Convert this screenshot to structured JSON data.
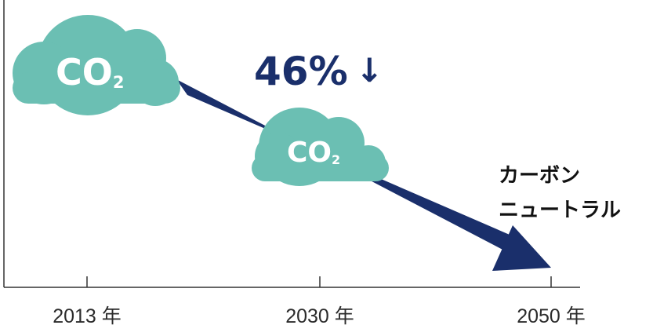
{
  "colors": {
    "cloud": "#6bbfb3",
    "arrow": "#1a2f6b",
    "axis": "#333333",
    "label_text": "#111111",
    "percent_text": "#1a2f6b"
  },
  "timeline": {
    "ticks": [
      {
        "label": "2013 年"
      },
      {
        "label": "2030 年"
      },
      {
        "label": "2050 年"
      }
    ]
  },
  "clouds": [
    {
      "label": "CO",
      "subscript": "2"
    },
    {
      "label": "CO",
      "subscript": "2"
    }
  ],
  "reduction": {
    "value": "46%",
    "arrow_glyph": "↓"
  },
  "goal": {
    "line1": "カーボン",
    "line2": "ニュートラル"
  },
  "icons": [
    "cloud-icon",
    "down-arrow-icon",
    "trend-arrow-icon"
  ]
}
